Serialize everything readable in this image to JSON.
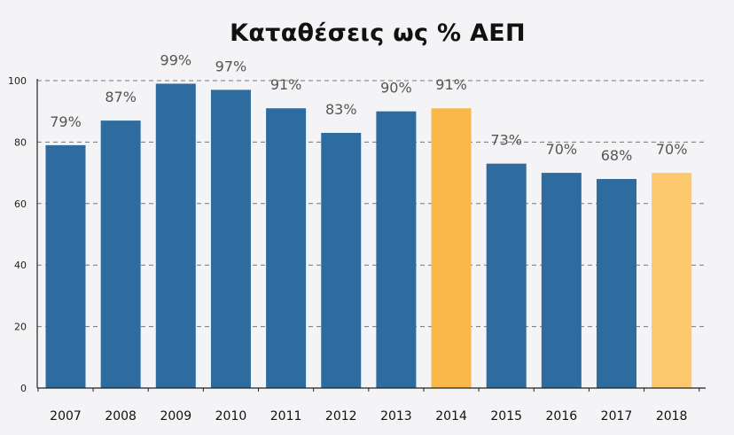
{
  "chart_data": {
    "type": "bar",
    "title": "Καταθέσεις ως % ΑΕΠ",
    "xlabel": "",
    "ylabel": "",
    "categories": [
      "2007",
      "2008",
      "2009",
      "2010",
      "2011",
      "2012",
      "2013",
      "2014",
      "2015",
      "2016",
      "2017",
      "2018"
    ],
    "values": [
      79,
      87,
      99,
      97,
      91,
      83,
      90,
      91,
      73,
      70,
      68,
      70
    ],
    "data_labels": [
      "79%",
      "87%",
      "99%",
      "97%",
      "91%",
      "83%",
      "90%",
      "91%",
      "73%",
      "70%",
      "68%",
      "70%"
    ],
    "bar_colors": [
      "#2e6b9e",
      "#2e6b9e",
      "#2e6b9e",
      "#2e6b9e",
      "#2e6b9e",
      "#2e6b9e",
      "#2e6b9e",
      "#fbb84a",
      "#2e6b9e",
      "#2e6b9e",
      "#2e6b9e",
      "#fdc86e"
    ],
    "yticks": [
      0,
      20,
      40,
      60,
      80,
      100
    ],
    "ylim": [
      0,
      100
    ],
    "grid": "dashed horizontal",
    "legend": "none"
  }
}
